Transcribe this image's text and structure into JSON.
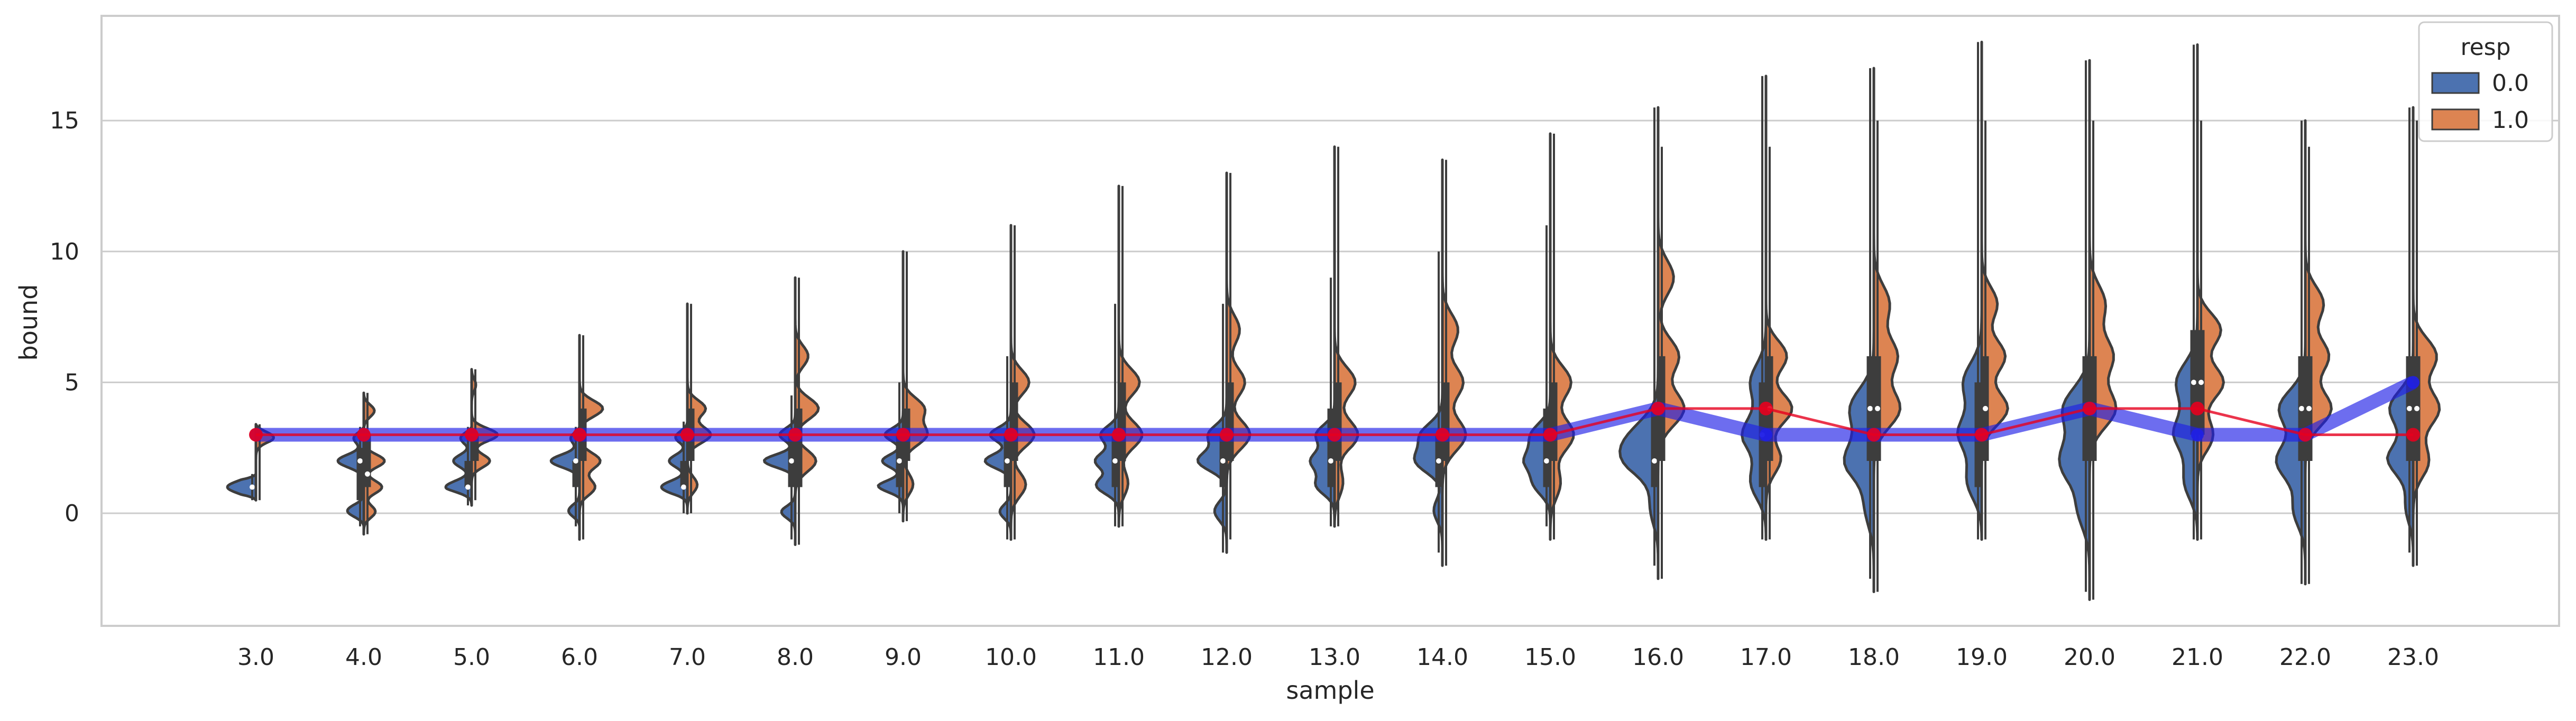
{
  "chart_data": {
    "type": "violin",
    "xlabel": "sample",
    "ylabel": "bound",
    "ylim": [
      -4.3,
      19
    ],
    "yticks": [
      0,
      5,
      10,
      15
    ],
    "grid": "horizontal",
    "categories": [
      "3.0",
      "4.0",
      "5.0",
      "6.0",
      "7.0",
      "8.0",
      "9.0",
      "10.0",
      "11.0",
      "12.0",
      "13.0",
      "14.0",
      "15.0",
      "16.0",
      "17.0",
      "18.0",
      "19.0",
      "20.0",
      "21.0",
      "22.0",
      "23.0"
    ],
    "legend": {
      "title": "resp",
      "placement": "top-right",
      "entries": [
        {
          "label": "0.0",
          "color": "#4c72b0"
        },
        {
          "label": "1.0",
          "color": "#dd8452"
        }
      ]
    },
    "violins": {
      "resp_0": [
        {
          "min": 0.5,
          "max": 1.5,
          "median": 1,
          "q1": 1,
          "q3": 1,
          "modes": [
            [
              1,
              0.55
            ]
          ]
        },
        {
          "min": -0.5,
          "max": 3.3,
          "median": 2,
          "q1": 0.5,
          "q3": 2.5,
          "modes": [
            [
              2,
              0.5
            ],
            [
              0,
              0.45
            ],
            [
              3,
              0.4
            ]
          ]
        },
        {
          "min": 0.3,
          "max": 3.3,
          "median": 1,
          "q1": 1,
          "q3": 2,
          "modes": [
            [
              1,
              0.5
            ],
            [
              2,
              0.35
            ],
            [
              3,
              0.35
            ]
          ]
        },
        {
          "min": -0.5,
          "max": 3.3,
          "median": 2,
          "q1": 1,
          "q3": 2,
          "modes": [
            [
              2,
              0.55
            ],
            [
              0,
              0.3
            ],
            [
              3,
              0.35
            ]
          ]
        },
        {
          "min": 0,
          "max": 3.5,
          "median": 1,
          "q1": 1,
          "q3": 2,
          "modes": [
            [
              1,
              0.5
            ],
            [
              2,
              0.35
            ],
            [
              3,
              0.3
            ]
          ]
        },
        {
          "min": -1,
          "max": 4.5,
          "median": 2,
          "q1": 1,
          "q3": 3,
          "modes": [
            [
              2,
              0.6
            ],
            [
              0,
              0.3
            ],
            [
              3,
              0.3
            ]
          ]
        },
        {
          "min": 0,
          "max": 5,
          "median": 2,
          "q1": 1,
          "q3": 3,
          "modes": [
            [
              1,
              0.5
            ],
            [
              2,
              0.4
            ],
            [
              3,
              0.35
            ]
          ]
        },
        {
          "min": -1,
          "max": 6,
          "median": 2,
          "q1": 1,
          "q3": 3,
          "modes": [
            [
              2,
              0.5
            ],
            [
              0,
              0.3
            ],
            [
              3,
              0.4
            ]
          ]
        },
        {
          "min": -0.5,
          "max": 8,
          "median": 2,
          "q1": 1,
          "q3": 3,
          "modes": [
            [
              1,
              0.5
            ],
            [
              2,
              0.45
            ],
            [
              3,
              0.35
            ]
          ]
        },
        {
          "min": -1.5,
          "max": 8,
          "median": 2,
          "q1": 1,
          "q3": 3,
          "modes": [
            [
              2,
              0.55
            ],
            [
              0,
              0.3
            ],
            [
              3,
              0.35
            ]
          ]
        },
        {
          "min": -0.5,
          "max": 9,
          "median": 2,
          "q1": 1,
          "q3": 4,
          "modes": [
            [
              1,
              0.45
            ],
            [
              2,
              0.45
            ],
            [
              3,
              0.35
            ]
          ]
        },
        {
          "min": -1.5,
          "max": 10,
          "median": 2,
          "q1": 1,
          "q3": 3,
          "modes": [
            [
              2,
              0.5
            ],
            [
              3,
              0.4
            ],
            [
              0,
              0.25
            ]
          ]
        },
        {
          "min": -0.5,
          "max": 11,
          "median": 2,
          "q1": 1,
          "q3": 4,
          "modes": [
            [
              1,
              0.45
            ],
            [
              2,
              0.45
            ],
            [
              3,
              0.35
            ]
          ]
        },
        {
          "min": -2,
          "max": 15.5,
          "median": 2,
          "q1": 1,
          "q3": 4,
          "modes": [
            [
              2,
              0.55
            ],
            [
              3,
              0.4
            ],
            [
              0,
              0.25
            ]
          ]
        },
        {
          "min": -1,
          "max": 16.7,
          "median": 3,
          "q1": 1,
          "q3": 5,
          "modes": [
            [
              1,
              0.5
            ],
            [
              3,
              0.45
            ],
            [
              5,
              0.3
            ]
          ]
        },
        {
          "min": -2.5,
          "max": 17,
          "median": 4,
          "q1": 2,
          "q3": 6,
          "modes": [
            [
              2,
              0.55
            ],
            [
              4,
              0.45
            ],
            [
              0,
              0.25
            ]
          ]
        },
        {
          "min": -1,
          "max": 18,
          "median": 3,
          "q1": 1,
          "q3": 5,
          "modes": [
            [
              1,
              0.5
            ],
            [
              3,
              0.45
            ],
            [
              5,
              0.35
            ]
          ]
        },
        {
          "min": -3,
          "max": 17.3,
          "median": 4,
          "q1": 2,
          "q3": 6,
          "modes": [
            [
              2,
              0.55
            ],
            [
              4,
              0.5
            ],
            [
              0,
              0.3
            ]
          ]
        },
        {
          "min": -1,
          "max": 17.9,
          "median": 5,
          "q1": 3,
          "q3": 7,
          "modes": [
            [
              1,
              0.45
            ],
            [
              3,
              0.45
            ],
            [
              5,
              0.4
            ]
          ]
        },
        {
          "min": -2.7,
          "max": 15,
          "median": 4,
          "q1": 2,
          "q3": 6,
          "modes": [
            [
              2,
              0.55
            ],
            [
              4,
              0.5
            ],
            [
              0,
              0.3
            ]
          ]
        },
        {
          "min": -1.5,
          "max": 15.5,
          "median": 4,
          "q1": 2,
          "q3": 6,
          "modes": [
            [
              2,
              0.5
            ],
            [
              4,
              0.45
            ],
            [
              0,
              0.3
            ]
          ]
        }
      ],
      "resp_1": [
        {
          "min": 0.5,
          "max": 3.4,
          "median": 3,
          "q1": 3,
          "q3": 3,
          "modes": [
            [
              3,
              0.45
            ]
          ]
        },
        {
          "min": -0.8,
          "max": 4.6,
          "median": 1.5,
          "q1": 1,
          "q3": 3,
          "modes": [
            [
              1,
              0.35
            ],
            [
              2,
              0.4
            ],
            [
              4,
              0.35
            ],
            [
              0,
              0.3
            ]
          ]
        },
        {
          "min": 0.5,
          "max": 5.5,
          "median": 3,
          "q1": 2,
          "q3": 3,
          "modes": [
            [
              3,
              0.5
            ],
            [
              2,
              0.35
            ],
            [
              5,
              0.15
            ]
          ]
        },
        {
          "min": -1,
          "max": 6.8,
          "median": 3,
          "q1": 2,
          "q3": 4,
          "modes": [
            [
              4,
              0.45
            ],
            [
              2,
              0.4
            ],
            [
              1,
              0.3
            ]
          ]
        },
        {
          "min": 0,
          "max": 8,
          "median": 3,
          "q1": 2,
          "q3": 4,
          "modes": [
            [
              3,
              0.45
            ],
            [
              4,
              0.35
            ],
            [
              1,
              0.3
            ]
          ]
        },
        {
          "min": -1.2,
          "max": 9,
          "median": 3,
          "q1": 1,
          "q3": 4,
          "modes": [
            [
              4,
              0.45
            ],
            [
              2,
              0.4
            ],
            [
              6,
              0.25
            ]
          ]
        },
        {
          "min": -0.3,
          "max": 10,
          "median": 3,
          "q1": 2,
          "q3": 4,
          "modes": [
            [
              3,
              0.45
            ],
            [
              4,
              0.4
            ],
            [
              1,
              0.3
            ]
          ]
        },
        {
          "min": -1,
          "max": 11,
          "median": 3,
          "q1": 2,
          "q3": 5,
          "modes": [
            [
              3,
              0.45
            ],
            [
              5,
              0.35
            ],
            [
              1,
              0.35
            ]
          ]
        },
        {
          "min": -0.5,
          "max": 12.5,
          "median": 3,
          "q1": 2,
          "q3": 5,
          "modes": [
            [
              3,
              0.45
            ],
            [
              5,
              0.4
            ],
            [
              1,
              0.3
            ]
          ]
        },
        {
          "min": -1,
          "max": 13,
          "median": 3,
          "q1": 2,
          "q3": 5,
          "modes": [
            [
              3,
              0.45
            ],
            [
              5,
              0.35
            ],
            [
              7,
              0.25
            ]
          ]
        },
        {
          "min": -0.5,
          "max": 14,
          "median": 3,
          "q1": 2,
          "q3": 5,
          "modes": [
            [
              3,
              0.45
            ],
            [
              5,
              0.4
            ],
            [
              1,
              0.3
            ]
          ]
        },
        {
          "min": -2,
          "max": 13.5,
          "median": 3,
          "q1": 2,
          "q3": 5,
          "modes": [
            [
              3,
              0.45
            ],
            [
              5,
              0.4
            ],
            [
              7,
              0.3
            ]
          ]
        },
        {
          "min": -1,
          "max": 14.5,
          "median": 3,
          "q1": 2,
          "q3": 5,
          "modes": [
            [
              3,
              0.45
            ],
            [
              5,
              0.4
            ],
            [
              1,
              0.3
            ]
          ]
        },
        {
          "min": -2.5,
          "max": 14,
          "median": 4,
          "q1": 2,
          "q3": 6,
          "modes": [
            [
              4,
              0.5
            ],
            [
              6,
              0.4
            ],
            [
              9,
              0.3
            ]
          ]
        },
        {
          "min": -1,
          "max": 14,
          "median": 4,
          "q1": 2,
          "q3": 6,
          "modes": [
            [
              4,
              0.5
            ],
            [
              6,
              0.4
            ],
            [
              2,
              0.3
            ]
          ]
        },
        {
          "min": -3,
          "max": 15,
          "median": 4,
          "q1": 2,
          "q3": 6,
          "modes": [
            [
              4,
              0.5
            ],
            [
              6,
              0.45
            ],
            [
              8,
              0.3
            ]
          ]
        },
        {
          "min": -1,
          "max": 15,
          "median": 4,
          "q1": 2,
          "q3": 6,
          "modes": [
            [
              4,
              0.5
            ],
            [
              6,
              0.45
            ],
            [
              8,
              0.3
            ]
          ]
        },
        {
          "min": -3.3,
          "max": 15,
          "median": 4,
          "q1": 2,
          "q3": 6,
          "modes": [
            [
              4,
              0.5
            ],
            [
              6,
              0.45
            ],
            [
              8,
              0.3
            ]
          ]
        },
        {
          "min": -1,
          "max": 15,
          "median": 5,
          "q1": 3,
          "q3": 7,
          "modes": [
            [
              5,
              0.5
            ],
            [
              7,
              0.45
            ],
            [
              3,
              0.3
            ]
          ]
        },
        {
          "min": -2.7,
          "max": 14,
          "median": 4,
          "q1": 2,
          "q3": 6,
          "modes": [
            [
              4,
              0.5
            ],
            [
              6,
              0.45
            ],
            [
              8,
              0.35
            ]
          ]
        },
        {
          "min": -2,
          "max": 15,
          "median": 4,
          "q1": 2,
          "q3": 6,
          "modes": [
            [
              4,
              0.5
            ],
            [
              6,
              0.45
            ],
            [
              2,
              0.3
            ]
          ]
        }
      ]
    },
    "overlay_lines": [
      {
        "color": "#1f1fe6",
        "style": "thick",
        "values": [
          3,
          3,
          3,
          3,
          3,
          3,
          3,
          3,
          3,
          3,
          3,
          3,
          3,
          4,
          3,
          3,
          3,
          4,
          3,
          3,
          5
        ]
      },
      {
        "color": "#e6001e",
        "style": "thin",
        "values": [
          3,
          3,
          3,
          3,
          3,
          3,
          3,
          3,
          3,
          3,
          3,
          3,
          3,
          4,
          4,
          3,
          3,
          4,
          4,
          3,
          3
        ]
      }
    ]
  }
}
